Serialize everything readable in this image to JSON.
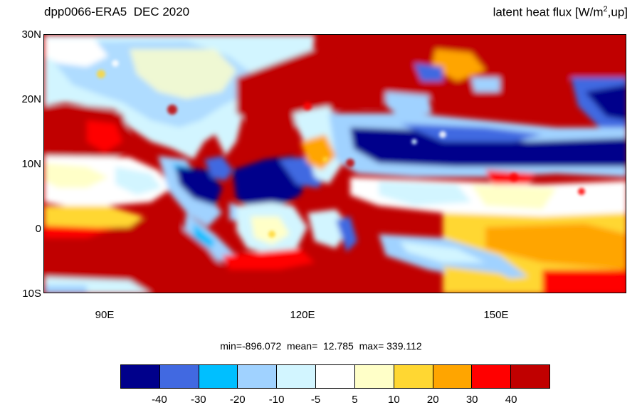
{
  "title_left": "dpp0066-ERA5  DEC 2020",
  "title_right": {
    "prefix": "latent heat flux [W/m",
    "sup": "2",
    "suffix": ",up]"
  },
  "lat_labels": [
    "30N",
    "20N",
    "10N",
    "0",
    "10S"
  ],
  "lon_labels": [
    "90E",
    "120E",
    "150E"
  ],
  "stats_text": "min=-896.072  mean=  12.785  max= 339.112",
  "colorbar": {
    "colors": [
      "#00008b",
      "#4169e1",
      "#00bfff",
      "#a0d2ff",
      "#d2f5ff",
      "#ffffff",
      "#ffffc8",
      "#ffd732",
      "#ffa500",
      "#ff0000",
      "#c00000"
    ],
    "labels": [
      "-40",
      "-30",
      "-20",
      "-10",
      "-5",
      "5",
      "10",
      "20",
      "30",
      "40"
    ]
  }
}
